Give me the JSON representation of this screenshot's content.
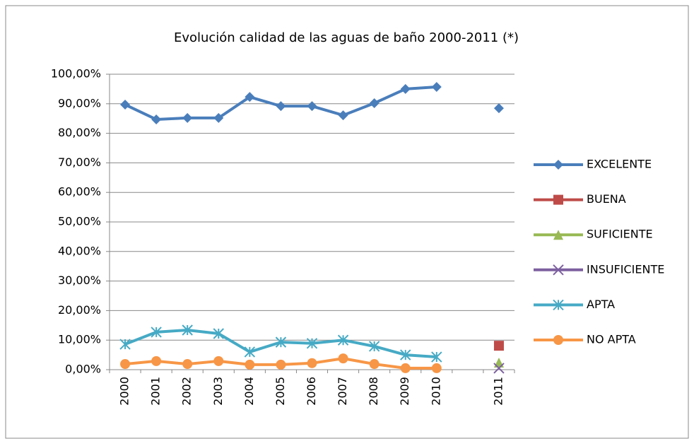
{
  "chart_data": {
    "type": "line",
    "title": "Evolución calidad de las aguas de baño 2000-2011 (*)",
    "categories": [
      "2000",
      "2001",
      "2002",
      "2003",
      "2004",
      "2005",
      "2006",
      "2007",
      "2008",
      "2009",
      "2010",
      null,
      "2011"
    ],
    "series": [
      {
        "name": "EXCELENTE",
        "color": "#4a7ebb",
        "marker": "diamond",
        "values": [
          89.7,
          84.7,
          85.2,
          85.2,
          92.3,
          89.2,
          89.2,
          86.1,
          90.2,
          95.0,
          95.7,
          null,
          88.5
        ]
      },
      {
        "name": "BUENA",
        "color": "#be4b48",
        "marker": "square",
        "values": [
          null,
          null,
          null,
          null,
          null,
          null,
          null,
          null,
          null,
          null,
          null,
          null,
          8.1
        ]
      },
      {
        "name": "SUFICIENTE",
        "color": "#98b954",
        "marker": "triangle",
        "values": [
          null,
          null,
          null,
          null,
          null,
          null,
          null,
          null,
          null,
          null,
          null,
          null,
          2.4
        ]
      },
      {
        "name": "INSUFICIENTE",
        "color": "#7d60a0",
        "marker": "x",
        "values": [
          null,
          null,
          null,
          null,
          null,
          null,
          null,
          null,
          null,
          null,
          null,
          null,
          0.5
        ]
      },
      {
        "name": "APTA",
        "color": "#46aac5",
        "marker": "star",
        "values": [
          8.6,
          12.7,
          13.4,
          12.2,
          6.0,
          9.3,
          8.9,
          10.0,
          7.9,
          5.0,
          4.3,
          null,
          null
        ]
      },
      {
        "name": "NO APTA",
        "color": "#f79646",
        "marker": "circle",
        "values": [
          1.9,
          2.9,
          1.9,
          2.9,
          1.7,
          1.7,
          2.2,
          3.8,
          1.9,
          0.5,
          0.5,
          null,
          null
        ]
      }
    ],
    "ylim": [
      0,
      100
    ],
    "yticks": [
      {
        "value": 0,
        "label": "0,00%"
      },
      {
        "value": 10,
        "label": "10,00%"
      },
      {
        "value": 20,
        "label": "20,00%"
      },
      {
        "value": 30,
        "label": "30,00%"
      },
      {
        "value": 40,
        "label": "40,00%"
      },
      {
        "value": 50,
        "label": "50,00%"
      },
      {
        "value": 60,
        "label": "60,00%"
      },
      {
        "value": 70,
        "label": "70,00%"
      },
      {
        "value": 80,
        "label": "80,00%"
      },
      {
        "value": 90,
        "label": "90,00%"
      },
      {
        "value": 100,
        "label": "100,00%"
      }
    ],
    "grid": true,
    "legend": "right"
  }
}
